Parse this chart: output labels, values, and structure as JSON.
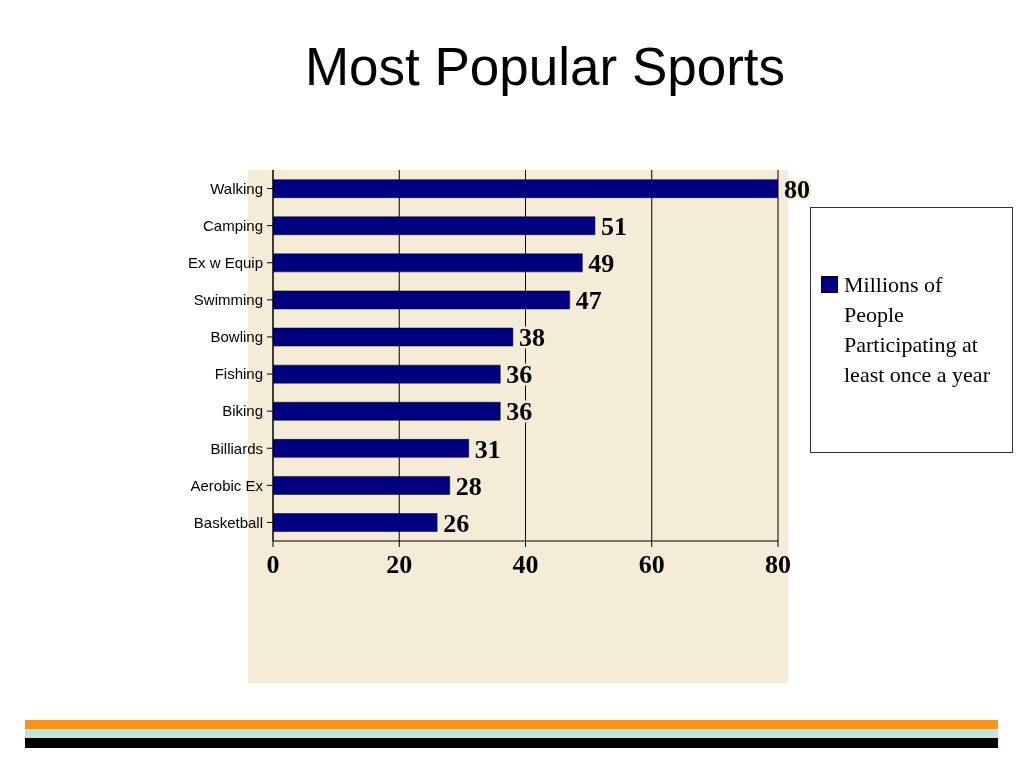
{
  "chart_data": {
    "type": "bar",
    "title": "Most Popular Sports",
    "categories": [
      "Walking",
      "Camping",
      "Ex w Equip",
      "Swimming",
      "Bowling",
      "Fishing",
      "Biking",
      "Billiards",
      "Aerobic Ex",
      "Basketball"
    ],
    "series": [
      {
        "name": "Millions of People Participating at least once a year",
        "color": "#000080",
        "values": [
          80,
          51,
          49,
          47,
          38,
          36,
          36,
          31,
          28,
          26
        ]
      }
    ],
    "orientation": "horizontal",
    "xlim": [
      0,
      80
    ],
    "xticks": [
      0,
      20,
      40,
      60,
      80
    ],
    "grid": "x",
    "legend": "right",
    "data_labels": true
  }
}
